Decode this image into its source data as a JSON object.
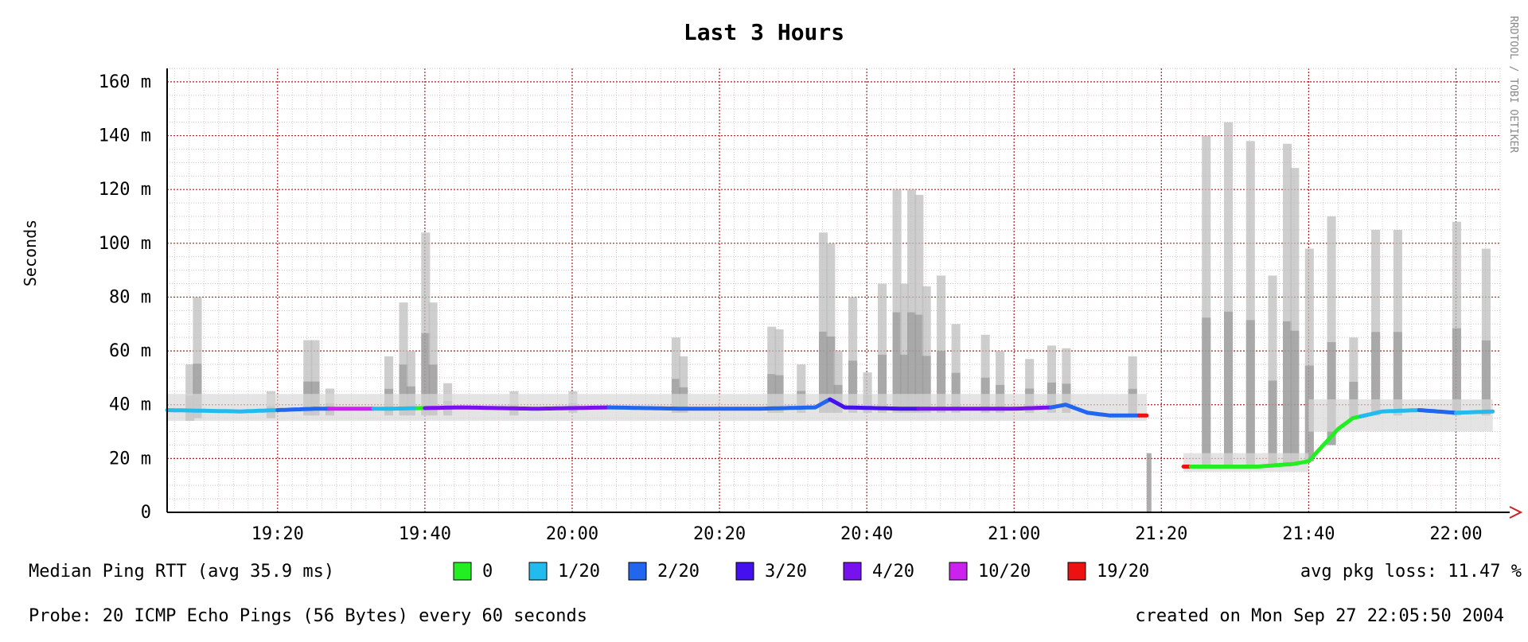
{
  "chart_data": {
    "type": "line",
    "title": "Last 3 Hours",
    "ylabel": "Seconds",
    "watermark": "RRDTOOL / TOBI OETIKER",
    "ylim": [
      0,
      165
    ],
    "xlim": [
      "19:05",
      "22:06"
    ],
    "x_ticks": [
      "19:20",
      "19:40",
      "20:00",
      "20:20",
      "20:40",
      "21:00",
      "21:20",
      "21:40",
      "22:00"
    ],
    "y_ticks": [
      {
        "value": 0,
        "label": "0"
      },
      {
        "value": 20,
        "label": "20 m"
      },
      {
        "value": 40,
        "label": "40 m"
      },
      {
        "value": 60,
        "label": "60 m"
      },
      {
        "value": 80,
        "label": "80 m"
      },
      {
        "value": 100,
        "label": "100 m"
      },
      {
        "value": 120,
        "label": "120 m"
      },
      {
        "value": 140,
        "label": "140 m"
      },
      {
        "value": 160,
        "label": "160 m"
      }
    ],
    "grid": true,
    "series": [
      {
        "name": "Median Ping RTT",
        "unit": "ms",
        "segments": [
          [
            [
              "19:05",
              38
            ],
            [
              "19:15",
              37.5
            ],
            [
              "19:25",
              38.5
            ],
            [
              "19:35",
              38.5
            ],
            [
              "19:45",
              39
            ],
            [
              "19:55",
              38.5
            ],
            [
              "20:05",
              39
            ],
            [
              "20:15",
              38.5
            ],
            [
              "20:25",
              38.5
            ],
            [
              "20:33",
              39
            ],
            [
              "20:35",
              42
            ],
            [
              "20:37",
              39
            ],
            [
              "20:45",
              38.5
            ],
            [
              "20:55",
              38.5
            ],
            [
              "21:00",
              38.5
            ],
            [
              "21:05",
              39
            ],
            [
              "21:07",
              40
            ],
            [
              "21:10",
              37
            ],
            [
              "21:13",
              36
            ],
            [
              "21:18",
              36
            ]
          ],
          [
            [
              "21:23",
              17
            ],
            [
              "21:28",
              17
            ],
            [
              "21:33",
              17
            ],
            [
              "21:38",
              18
            ],
            [
              "21:40",
              19
            ],
            [
              "21:42",
              25
            ],
            [
              "21:44",
              31
            ],
            [
              "21:46",
              35
            ],
            [
              "21:50",
              37.5
            ],
            [
              "21:55",
              38
            ],
            [
              "22:00",
              37
            ],
            [
              "22:05",
              37.5
            ]
          ]
        ]
      }
    ],
    "loss_levels": [
      {
        "label": "0",
        "color": "#22ee22"
      },
      {
        "label": "1/20",
        "color": "#22bbee"
      },
      {
        "label": "2/20",
        "color": "#2266ee"
      },
      {
        "label": "3/20",
        "color": "#4411ee"
      },
      {
        "label": "4/20",
        "color": "#7711ee"
      },
      {
        "label": "10/20",
        "color": "#cc22ee"
      },
      {
        "label": "19/20",
        "color": "#ee1111"
      }
    ],
    "loss_colored_runs": [
      {
        "from": "19:05",
        "to": "19:20",
        "level": "1/20"
      },
      {
        "from": "19:20",
        "to": "19:27",
        "level": "2/20"
      },
      {
        "from": "19:27",
        "to": "19:33",
        "level": "10/20"
      },
      {
        "from": "19:33",
        "to": "19:39",
        "level": "1/20"
      },
      {
        "from": "19:39",
        "to": "19:40",
        "level": "0"
      },
      {
        "from": "19:40",
        "to": "20:05",
        "level": "4/20"
      },
      {
        "from": "20:05",
        "to": "20:35",
        "level": "2/20"
      },
      {
        "from": "20:35",
        "to": "20:47",
        "level": "3/20"
      },
      {
        "from": "20:47",
        "to": "21:05",
        "level": "4/20"
      },
      {
        "from": "21:05",
        "to": "21:17",
        "level": "2/20"
      },
      {
        "from": "21:17",
        "to": "21:18",
        "level": "19/20"
      },
      {
        "from": "21:23",
        "to": "21:24",
        "level": "19/20"
      },
      {
        "from": "21:24",
        "to": "21:42",
        "level": "0"
      },
      {
        "from": "21:42",
        "to": "21:47",
        "level": "0"
      },
      {
        "from": "21:47",
        "to": "21:55",
        "level": "1/20"
      },
      {
        "from": "21:55",
        "to": "22:00",
        "level": "2/20"
      },
      {
        "from": "22:00",
        "to": "22:05",
        "level": "1/20"
      }
    ],
    "smoke_spikes": [
      {
        "t": "19:08",
        "lo": 34,
        "hi": 55
      },
      {
        "t": "19:09",
        "lo": 35,
        "hi": 80
      },
      {
        "t": "19:19",
        "lo": 35,
        "hi": 45
      },
      {
        "t": "19:24",
        "lo": 36,
        "hi": 64
      },
      {
        "t": "19:25",
        "lo": 36,
        "hi": 64
      },
      {
        "t": "19:27",
        "lo": 36,
        "hi": 46
      },
      {
        "t": "19:35",
        "lo": 36,
        "hi": 58
      },
      {
        "t": "19:37",
        "lo": 36,
        "hi": 78
      },
      {
        "t": "19:38",
        "lo": 36,
        "hi": 60
      },
      {
        "t": "19:40",
        "lo": 36,
        "hi": 104
      },
      {
        "t": "19:41",
        "lo": 36,
        "hi": 78
      },
      {
        "t": "19:43",
        "lo": 36,
        "hi": 48
      },
      {
        "t": "19:52",
        "lo": 36,
        "hi": 45
      },
      {
        "t": "20:00",
        "lo": 37,
        "hi": 45
      },
      {
        "t": "20:14",
        "lo": 37,
        "hi": 65
      },
      {
        "t": "20:15",
        "lo": 37,
        "hi": 58
      },
      {
        "t": "20:27",
        "lo": 37,
        "hi": 69
      },
      {
        "t": "20:28",
        "lo": 37,
        "hi": 68
      },
      {
        "t": "20:31",
        "lo": 37,
        "hi": 55
      },
      {
        "t": "20:34",
        "lo": 37,
        "hi": 104
      },
      {
        "t": "20:35",
        "lo": 37,
        "hi": 100
      },
      {
        "t": "20:36",
        "lo": 37,
        "hi": 60
      },
      {
        "t": "20:38",
        "lo": 37,
        "hi": 80
      },
      {
        "t": "20:40",
        "lo": 37,
        "hi": 52
      },
      {
        "t": "20:42",
        "lo": 37,
        "hi": 85
      },
      {
        "t": "20:44",
        "lo": 37,
        "hi": 120
      },
      {
        "t": "20:45",
        "lo": 37,
        "hi": 85
      },
      {
        "t": "20:46",
        "lo": 37,
        "hi": 120
      },
      {
        "t": "20:47",
        "lo": 37,
        "hi": 118
      },
      {
        "t": "20:48",
        "lo": 37,
        "hi": 84
      },
      {
        "t": "20:50",
        "lo": 37,
        "hi": 88
      },
      {
        "t": "20:52",
        "lo": 37,
        "hi": 70
      },
      {
        "t": "20:56",
        "lo": 37,
        "hi": 66
      },
      {
        "t": "20:58",
        "lo": 37,
        "hi": 60
      },
      {
        "t": "21:02",
        "lo": 37,
        "hi": 57
      },
      {
        "t": "21:05",
        "lo": 37,
        "hi": 62
      },
      {
        "t": "21:07",
        "lo": 37,
        "hi": 61
      },
      {
        "t": "21:16",
        "lo": 36,
        "hi": 58
      },
      {
        "t": "21:26",
        "lo": 17,
        "hi": 140
      },
      {
        "t": "21:29",
        "lo": 17,
        "hi": 145
      },
      {
        "t": "21:32",
        "lo": 17,
        "hi": 138
      },
      {
        "t": "21:35",
        "lo": 17,
        "hi": 88
      },
      {
        "t": "21:37",
        "lo": 17,
        "hi": 137
      },
      {
        "t": "21:38",
        "lo": 18,
        "hi": 128
      },
      {
        "t": "21:40",
        "lo": 19,
        "hi": 98
      },
      {
        "t": "21:43",
        "lo": 25,
        "hi": 110
      },
      {
        "t": "21:46",
        "lo": 35,
        "hi": 65
      },
      {
        "t": "21:49",
        "lo": 36,
        "hi": 105
      },
      {
        "t": "21:52",
        "lo": 36,
        "hi": 105
      },
      {
        "t": "22:00",
        "lo": 36,
        "hi": 108
      },
      {
        "t": "22:04",
        "lo": 36,
        "hi": 98
      }
    ],
    "outages": [
      {
        "from": "21:18",
        "to": "21:22"
      }
    ]
  },
  "legend": {
    "median_label": "Median Ping RTT (avg 35.9 ms)",
    "loss_summary": "avg pkg loss: 11.47 %"
  },
  "footer": {
    "probe": "Probe: 20 ICMP Echo Pings (56 Bytes) every 60 seconds",
    "created": "created on Mon Sep 27 22:05:50 2004"
  }
}
